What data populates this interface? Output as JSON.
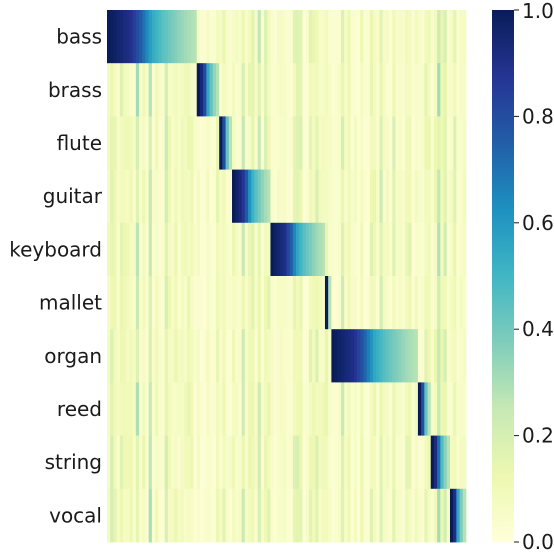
{
  "chart_data": {
    "type": "heatmap",
    "rows": [
      "bass",
      "brass",
      "flute",
      "guitar",
      "keyboard",
      "mallet",
      "organ",
      "reed",
      "string",
      "vocal"
    ],
    "n_columns": 112,
    "value_range": [
      0.0,
      1.0
    ],
    "colormap": "YlGnBu",
    "colorbar": {
      "ticks": [
        0.0,
        0.2,
        0.4,
        0.6,
        0.8,
        1.0
      ],
      "tick_labels": [
        "0.0",
        "0.2",
        "0.4",
        "0.6",
        "0.8",
        "1.0"
      ]
    },
    "title": "",
    "xlabel": "",
    "ylabel": "",
    "row_blocks": [
      {
        "row": "bass",
        "start_col": 0,
        "end_col": 27
      },
      {
        "row": "brass",
        "start_col": 28,
        "end_col": 34
      },
      {
        "row": "flute",
        "start_col": 35,
        "end_col": 38
      },
      {
        "row": "guitar",
        "start_col": 39,
        "end_col": 50
      },
      {
        "row": "keyboard",
        "start_col": 51,
        "end_col": 67
      },
      {
        "row": "mallet",
        "start_col": 68,
        "end_col": 69
      },
      {
        "row": "organ",
        "start_col": 70,
        "end_col": 96
      },
      {
        "row": "reed",
        "start_col": 97,
        "end_col": 100
      },
      {
        "row": "string",
        "start_col": 101,
        "end_col": 106
      },
      {
        "row": "vocal",
        "start_col": 107,
        "end_col": 111
      }
    ],
    "block_profile": [
      1.0,
      0.95,
      0.9,
      0.75,
      0.55,
      0.45,
      0.38,
      0.32,
      0.28
    ]
  }
}
